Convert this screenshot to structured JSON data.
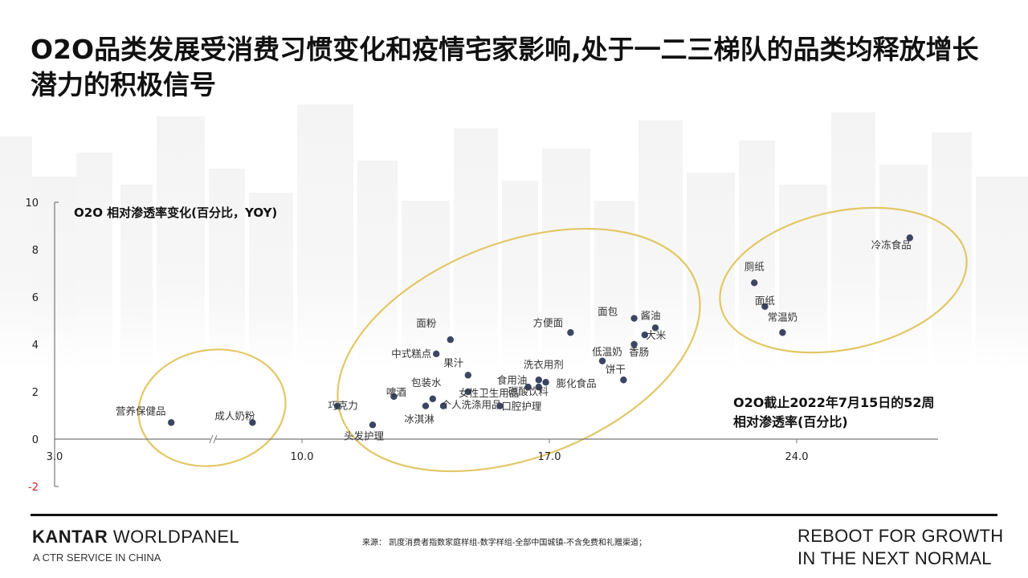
{
  "title": "O2O品类发展受消费习惯变化和疫情宅家影响,处于一二三梯队的品类均释放增长潜力的积极信号",
  "chart_data": {
    "type": "scatter",
    "ylabel": "O2O 相对渗透率变化(百分比，YOY)",
    "xlabel": "O2O截止2022年7月15日的52周相对渗透率(百分比)",
    "xlim": [
      3.0,
      28.0
    ],
    "ylim": [
      -2,
      10
    ],
    "x_ticks": [
      3.0,
      10.0,
      17.0,
      24.0
    ],
    "x_tick_labels": [
      "3.0",
      "10.0",
      "17.0",
      "24.0"
    ],
    "y_ticks": [
      -2,
      0,
      2,
      4,
      6,
      8,
      10
    ],
    "y_tick_labels": [
      "-2",
      "0",
      "2",
      "4",
      "6",
      "8",
      "10"
    ],
    "grid": false,
    "points": [
      {
        "label": "营养保健品",
        "x": 6.3,
        "y": 0.7
      },
      {
        "label": "成人奶粉",
        "x": 8.6,
        "y": 0.7
      },
      {
        "label": "巧克力",
        "x": 11.0,
        "y": 1.4
      },
      {
        "label": "头发护理",
        "x": 12.0,
        "y": 0.6
      },
      {
        "label": "啤酒",
        "x": 12.6,
        "y": 1.8
      },
      {
        "label": "冰淇淋",
        "x": 13.5,
        "y": 1.4
      },
      {
        "label": "个人洗涤用品",
        "x": 14.0,
        "y": 1.4
      },
      {
        "label": "包装水",
        "x": 13.7,
        "y": 1.7
      },
      {
        "label": "面粉",
        "x": 14.2,
        "y": 4.2
      },
      {
        "label": "中式糕点",
        "x": 13.8,
        "y": 3.6
      },
      {
        "label": "果汁",
        "x": 14.7,
        "y": 2.7
      },
      {
        "label": "女性卫生用品",
        "x": 14.7,
        "y": 2.0
      },
      {
        "label": "口腔护理",
        "x": 15.6,
        "y": 1.4
      },
      {
        "label": "食用油",
        "x": 16.4,
        "y": 2.2
      },
      {
        "label": "碳酸饮料",
        "x": 16.7,
        "y": 2.2
      },
      {
        "label": "洗衣用剂",
        "x": 16.7,
        "y": 2.5
      },
      {
        "label": "膨化食品",
        "x": 16.9,
        "y": 2.4
      },
      {
        "label": "方便面",
        "x": 17.6,
        "y": 4.5
      },
      {
        "label": "低温奶",
        "x": 18.5,
        "y": 3.3
      },
      {
        "label": "饼干",
        "x": 19.1,
        "y": 2.5
      },
      {
        "label": "面包",
        "x": 19.4,
        "y": 5.1
      },
      {
        "label": "香肠",
        "x": 19.4,
        "y": 4.0
      },
      {
        "label": "酱油",
        "x": 20.0,
        "y": 4.7
      },
      {
        "label": "大米",
        "x": 19.7,
        "y": 4.4
      },
      {
        "label": "厕纸",
        "x": 22.8,
        "y": 6.6
      },
      {
        "label": "面纸",
        "x": 23.1,
        "y": 5.6
      },
      {
        "label": "常温奶",
        "x": 23.6,
        "y": 4.5
      },
      {
        "label": "冷冻食品",
        "x": 27.2,
        "y": 8.5
      }
    ]
  },
  "footer": {
    "brand_strong": "KANTAR",
    "brand_rest": " WORLDPANEL",
    "brand_sub": "A CTR SERVICE IN CHINA",
    "source": "来源：  凯度消费者指数家庭样组-数字样组-全部中国城镇-不含免费和礼赠渠道；",
    "slogan_line1": "REBOOT FOR GROWTH",
    "slogan_line2": "IN THE NEXT NORMAL"
  },
  "colors": {
    "point": "#3b4563",
    "ellipse": "#e2c766",
    "axis_negative": "#d11f1f",
    "label": "#333333"
  }
}
